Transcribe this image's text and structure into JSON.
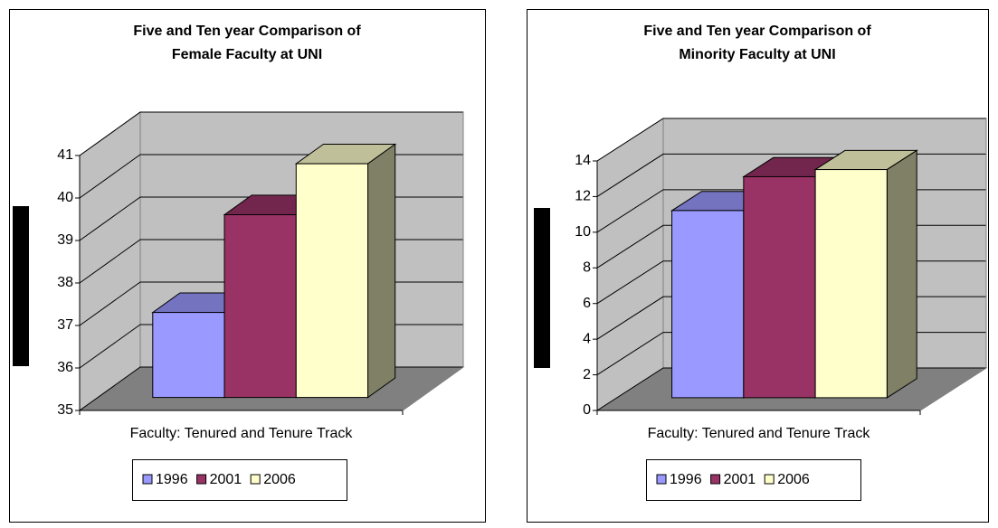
{
  "chart_data": [
    {
      "type": "bar",
      "title": "Five and Ten year Comparison of Female Faculty at UNI",
      "categories": [
        "Faculty: Tenured and Tenure Track"
      ],
      "series": [
        {
          "name": "1996",
          "color": "#9999ff",
          "values": [
            37
          ]
        },
        {
          "name": "2001",
          "color": "#993366",
          "values": [
            39.3
          ]
        },
        {
          "name": "2006",
          "color": "#ffffcc",
          "values": [
            40.5
          ]
        }
      ],
      "ylim": [
        35,
        41
      ],
      "yticks": [
        35,
        36,
        37,
        38,
        39,
        40,
        41
      ],
      "grid": true,
      "legend": "bottom"
    },
    {
      "type": "bar",
      "title": "Five and Ten year Comparison of Minority Faculty at UNI",
      "categories": [
        "Faculty: Tenured and Tenure Track"
      ],
      "series": [
        {
          "name": "1996",
          "color": "#9999ff",
          "values": [
            10.5
          ]
        },
        {
          "name": "2001",
          "color": "#993366",
          "values": [
            12.4
          ]
        },
        {
          "name": "2006",
          "color": "#ffffcc",
          "values": [
            12.8
          ]
        }
      ],
      "ylim": [
        0,
        14
      ],
      "yticks": [
        0,
        2,
        4,
        6,
        8,
        10,
        12,
        14
      ],
      "grid": true,
      "legend": "bottom"
    }
  ]
}
